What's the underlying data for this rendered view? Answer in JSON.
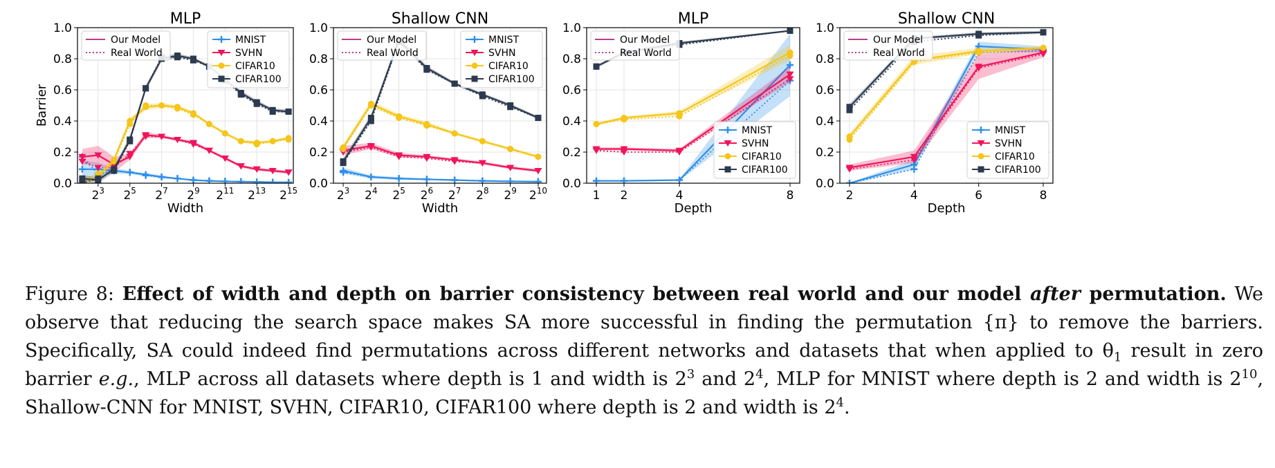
{
  "colors": {
    "MNIST": "#2e8fe8",
    "SVHN": "#f0145a",
    "CIFAR10": "#f5c518",
    "CIFAR100": "#2c3a4f",
    "model_legend": "#b0207a"
  },
  "chart_data": [
    {
      "type": "line",
      "title": "MLP",
      "xlabel": "Width",
      "ylabel": "Barrier",
      "x_scale": "log2",
      "x": [
        4,
        8,
        16,
        32,
        64,
        128,
        256,
        512,
        1024,
        2048,
        4096,
        8192,
        16384,
        32768
      ],
      "xticks": [
        8,
        32,
        128,
        512,
        2048,
        8192,
        32768
      ],
      "xtick_labels": [
        {
          "b": "2",
          "e": "3"
        },
        {
          "b": "2",
          "e": "5"
        },
        {
          "b": "2",
          "e": "7"
        },
        {
          "b": "2",
          "e": "9"
        },
        {
          "b": "2",
          "e": "11"
        },
        {
          "b": "2",
          "e": "13"
        },
        {
          "b": "2",
          "e": "15"
        }
      ],
      "xlim_log2": [
        1.7,
        15.3
      ],
      "ylim": [
        0,
        1.0
      ],
      "yticks": [
        "0.0",
        "0.2",
        "0.4",
        "0.6",
        "0.8",
        "1.0"
      ],
      "grid": true,
      "legend_model": {
        "placement": "top-left",
        "entries": [
          "Our Model",
          "Real World"
        ]
      },
      "legend_data": {
        "placement": "top-right",
        "entries": [
          "MNIST",
          "SVHN",
          "CIFAR10",
          "CIFAR100"
        ]
      },
      "series": [
        {
          "name": "MNIST",
          "model": [
            0.09,
            0.09,
            0.08,
            0.07,
            0.055,
            0.04,
            0.03,
            0.02,
            0.015,
            0.012,
            0.01,
            0.008,
            0.006,
            0.005
          ],
          "real": [
            0.17,
            0.06,
            0.08,
            0.07,
            0.05,
            0.04,
            0.03,
            0.02,
            0.015,
            0.012,
            0.01,
            0.008,
            0.006,
            0.005
          ],
          "band": [
            0.06,
            0.04,
            0.02,
            0.01,
            0.01,
            0.01,
            0.005,
            0.005,
            0.005,
            0.005,
            0.005,
            0.005,
            0.005,
            0.005
          ]
        },
        {
          "name": "SVHN",
          "model": [
            0.17,
            0.18,
            0.12,
            0.17,
            0.31,
            0.3,
            0.28,
            0.26,
            0.21,
            0.16,
            0.11,
            0.09,
            0.08,
            0.07
          ],
          "real": [
            0.14,
            0.1,
            0.1,
            0.19,
            0.3,
            0.3,
            0.28,
            0.25,
            0.21,
            0.16,
            0.11,
            0.09,
            0.08,
            0.07
          ],
          "band": [
            0.05,
            0.06,
            0.05,
            0.02,
            0.02,
            0.01,
            0.01,
            0.01,
            0.01,
            0.01,
            0.01,
            0.01,
            0.01,
            0.01
          ]
        },
        {
          "name": "CIFAR10",
          "model": [
            0.01,
            0.04,
            0.15,
            0.4,
            0.49,
            0.5,
            0.49,
            0.45,
            0.38,
            0.32,
            0.27,
            0.26,
            0.27,
            0.29
          ],
          "real": [
            0.02,
            0.06,
            0.14,
            0.38,
            0.5,
            0.5,
            0.48,
            0.44,
            0.38,
            0.32,
            0.27,
            0.25,
            0.27,
            0.28
          ],
          "band": [
            0.02,
            0.02,
            0.02,
            0.02,
            0.02,
            0.015,
            0.015,
            0.01,
            0.01,
            0.01,
            0.01,
            0.01,
            0.01,
            0.01
          ]
        },
        {
          "name": "CIFAR100",
          "model": [
            0.03,
            0.02,
            0.09,
            0.28,
            0.61,
            0.8,
            0.82,
            0.8,
            0.75,
            0.67,
            0.58,
            0.52,
            0.47,
            0.46
          ],
          "real": [
            0.0,
            0.03,
            0.08,
            0.27,
            0.61,
            0.81,
            0.81,
            0.79,
            0.75,
            0.66,
            0.57,
            0.51,
            0.46,
            0.46
          ],
          "band": [
            0.02,
            0.02,
            0.02,
            0.02,
            0.02,
            0.015,
            0.015,
            0.01,
            0.01,
            0.01,
            0.015,
            0.015,
            0.01,
            0.015
          ]
        }
      ]
    },
    {
      "type": "line",
      "title": "Shallow CNN",
      "xlabel": "Width",
      "ylabel": "",
      "x_scale": "log2",
      "x": [
        8,
        16,
        32,
        64,
        128,
        256,
        512,
        1024
      ],
      "xticks": [
        8,
        16,
        32,
        64,
        128,
        256,
        512,
        1024
      ],
      "xtick_labels": [
        {
          "b": "2",
          "e": "3"
        },
        {
          "b": "2",
          "e": "4"
        },
        {
          "b": "2",
          "e": "5"
        },
        {
          "b": "2",
          "e": "6"
        },
        {
          "b": "2",
          "e": "7"
        },
        {
          "b": "2",
          "e": "8"
        },
        {
          "b": "2",
          "e": "9"
        },
        {
          "b": "2",
          "e": "10"
        }
      ],
      "xlim_log2": [
        2.65,
        10.3
      ],
      "ylim": [
        0,
        1.0
      ],
      "yticks": [
        "0.0",
        "0.2",
        "0.4",
        "0.6",
        "0.8",
        "1.0"
      ],
      "grid": true,
      "legend_model": {
        "placement": "top-left",
        "entries": [
          "Our Model",
          "Real World"
        ]
      },
      "legend_data": {
        "placement": "top-right",
        "entries": [
          "MNIST",
          "SVHN",
          "CIFAR10",
          "CIFAR100"
        ]
      },
      "series": [
        {
          "name": "MNIST",
          "model": [
            0.08,
            0.04,
            0.03,
            0.025,
            0.02,
            0.015,
            0.012,
            0.01
          ],
          "real": [
            0.07,
            0.04,
            0.03,
            0.025,
            0.02,
            0.015,
            0.012,
            0.01
          ],
          "band": [
            0.02,
            0.01,
            0.01,
            0.005,
            0.005,
            0.005,
            0.005,
            0.005
          ]
        },
        {
          "name": "SVHN",
          "model": [
            0.21,
            0.24,
            0.18,
            0.17,
            0.15,
            0.13,
            0.1,
            0.08
          ],
          "real": [
            0.2,
            0.23,
            0.17,
            0.16,
            0.14,
            0.13,
            0.1,
            0.08
          ],
          "band": [
            0.03,
            0.02,
            0.015,
            0.01,
            0.01,
            0.01,
            0.01,
            0.01
          ]
        },
        {
          "name": "CIFAR10",
          "model": [
            0.23,
            0.51,
            0.43,
            0.38,
            0.32,
            0.27,
            0.22,
            0.17
          ],
          "real": [
            0.22,
            0.5,
            0.42,
            0.37,
            0.32,
            0.27,
            0.22,
            0.17
          ],
          "band": [
            0.02,
            0.02,
            0.015,
            0.015,
            0.01,
            0.01,
            0.01,
            0.01
          ]
        },
        {
          "name": "CIFAR100",
          "model": [
            0.14,
            0.42,
            0.92,
            0.74,
            0.64,
            0.57,
            0.5,
            0.42
          ],
          "real": [
            0.13,
            0.4,
            0.91,
            0.73,
            0.64,
            0.56,
            0.49,
            0.42
          ],
          "band": [
            0.02,
            0.02,
            0.02,
            0.015,
            0.01,
            0.01,
            0.01,
            0.01
          ]
        }
      ]
    },
    {
      "type": "line",
      "title": "MLP",
      "xlabel": "Depth",
      "ylabel": "",
      "x_scale": "linear",
      "x": [
        1,
        2,
        4,
        8
      ],
      "xticks": [
        1,
        2,
        4,
        8
      ],
      "xtick_labels": [
        {
          "b": "1",
          "e": ""
        },
        {
          "b": "2",
          "e": ""
        },
        {
          "b": "4",
          "e": ""
        },
        {
          "b": "8",
          "e": ""
        }
      ],
      "xlim": [
        0.65,
        8.35
      ],
      "ylim": [
        0,
        1.0
      ],
      "yticks": [
        "0.0",
        "0.2",
        "0.4",
        "0.6",
        "0.8",
        "1.0"
      ],
      "grid": true,
      "legend_model": {
        "placement": "top-left",
        "entries": [
          "Our Model",
          "Real World"
        ]
      },
      "legend_data": {
        "placement": "lower-right",
        "entries": [
          "MNIST",
          "SVHN",
          "CIFAR10",
          "CIFAR100"
        ]
      },
      "series": [
        {
          "name": "MNIST",
          "model": [
            0.015,
            0.015,
            0.02,
            0.76
          ],
          "real": [
            0.015,
            0.015,
            0.02,
            0.66
          ],
          "band": [
            0.005,
            0.005,
            0.005,
            0.2
          ]
        },
        {
          "name": "SVHN",
          "model": [
            0.22,
            0.22,
            0.21,
            0.7
          ],
          "real": [
            0.21,
            0.2,
            0.2,
            0.67
          ],
          "band": [
            0.01,
            0.01,
            0.01,
            0.05
          ]
        },
        {
          "name": "CIFAR10",
          "model": [
            0.38,
            0.42,
            0.45,
            0.84
          ],
          "real": [
            0.38,
            0.41,
            0.43,
            0.82
          ],
          "band": [
            0.01,
            0.01,
            0.015,
            0.05
          ]
        },
        {
          "name": "CIFAR100",
          "model": [
            0.75,
            0.84,
            0.9,
            0.98
          ],
          "real": [
            0.75,
            0.84,
            0.89,
            0.98
          ],
          "band": [
            0.01,
            0.01,
            0.01,
            0.005
          ]
        }
      ]
    },
    {
      "type": "line",
      "title": "Shallow CNN",
      "xlabel": "Depth",
      "ylabel": "",
      "x_scale": "linear",
      "x": [
        2,
        4,
        6,
        8
      ],
      "xticks": [
        2,
        4,
        6,
        8
      ],
      "xtick_labels": [
        {
          "b": "2",
          "e": ""
        },
        {
          "b": "4",
          "e": ""
        },
        {
          "b": "6",
          "e": ""
        },
        {
          "b": "8",
          "e": ""
        }
      ],
      "xlim": [
        1.7,
        8.3
      ],
      "ylim": [
        0,
        1.0
      ],
      "yticks": [
        "0.0",
        "0.2",
        "0.4",
        "0.6",
        "0.8",
        "1.0"
      ],
      "grid": true,
      "legend_model": {
        "placement": "top-left",
        "entries": [
          "Our Model",
          "Real World"
        ]
      },
      "legend_data": {
        "placement": "lower-right",
        "entries": [
          "MNIST",
          "SVHN",
          "CIFAR10",
          "CIFAR100"
        ]
      },
      "series": [
        {
          "name": "MNIST",
          "model": [
            0.0,
            0.12,
            0.88,
            0.86
          ],
          "real": [
            0.0,
            0.09,
            0.84,
            0.85
          ],
          "band": [
            0.005,
            0.03,
            0.03,
            0.02
          ]
        },
        {
          "name": "SVHN",
          "model": [
            0.1,
            0.17,
            0.75,
            0.84
          ],
          "real": [
            0.09,
            0.15,
            0.74,
            0.83
          ],
          "band": [
            0.02,
            0.04,
            0.08,
            0.03
          ]
        },
        {
          "name": "CIFAR10",
          "model": [
            0.3,
            0.79,
            0.85,
            0.87
          ],
          "real": [
            0.28,
            0.78,
            0.84,
            0.87
          ],
          "band": [
            0.02,
            0.03,
            0.02,
            0.01
          ]
        },
        {
          "name": "CIFAR100",
          "model": [
            0.49,
            0.93,
            0.96,
            0.97
          ],
          "real": [
            0.47,
            0.91,
            0.95,
            0.97
          ],
          "band": [
            0.02,
            0.01,
            0.01,
            0.01
          ]
        }
      ]
    }
  ],
  "caption": {
    "figure_label": "Figure 8:",
    "bold_title_1": "Effect of width and depth on barrier consistency between real world and our model",
    "bold_italic_word": "after",
    "bold_title_2": "permutation.",
    "text_1": "We observe that reducing the search space makes SA more successful in finding the permutation {π} to remove the barriers. Specifically, SA could indeed find permutations across different networks and datasets that when applied to θ",
    "theta_sub": "1",
    "text_2": "result in zero barrier",
    "eg": "e.g.",
    "text_3": ", MLP across all datasets where depth is 1 and width is 2",
    "sup_1": "3",
    "text_4": "and 2",
    "sup_2": "4",
    "text_5": ", MLP for MNIST where depth is 2 and width is 2",
    "sup_3": "10",
    "text_6": ", Shallow-CNN for MNIST, SVHN, CIFAR10, CIFAR100 where depth is 2 and width is 2",
    "sup_4": "4",
    "text_7": "."
  }
}
